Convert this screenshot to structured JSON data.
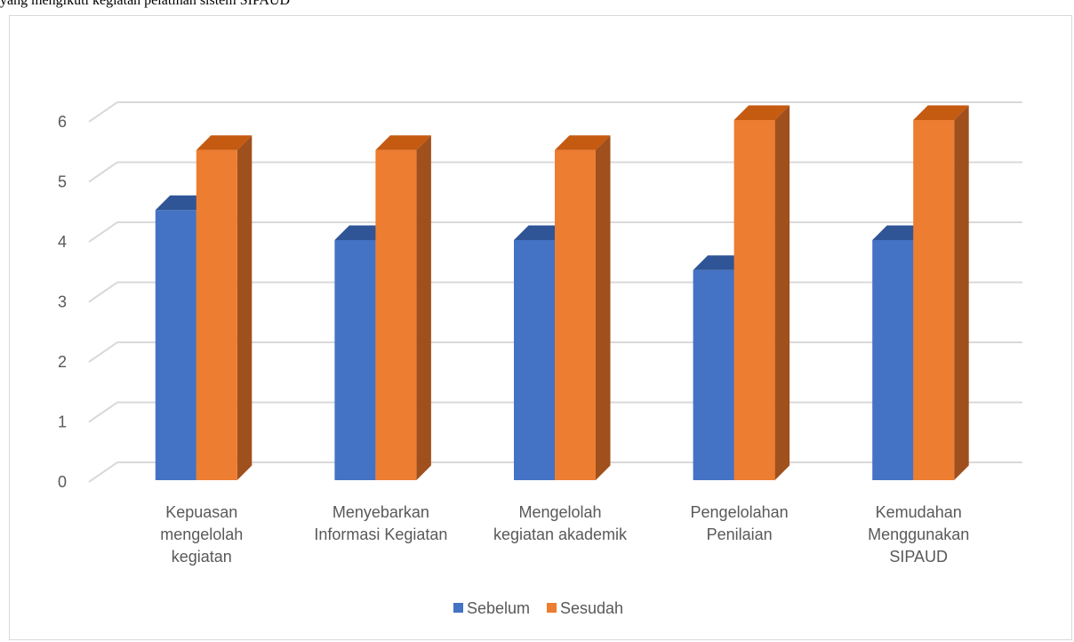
{
  "page": {
    "top_text": "yang mengikuti kegiatan pelatihan sistem SIPAUD"
  },
  "chart_data": {
    "type": "bar",
    "style": "3d-clustered-column",
    "categories": [
      [
        "Kepuasan",
        "mengelolah",
        "kegiatan"
      ],
      [
        "Menyebarkan",
        "Informasi Kegiatan"
      ],
      [
        "Mengelolah",
        "kegiatan akademik"
      ],
      [
        "Pengelolahan",
        "Penilaian"
      ],
      [
        "Kemudahan",
        "Menggunakan",
        "SIPAUD"
      ]
    ],
    "series": [
      {
        "name": "Sebelum",
        "values": [
          4.5,
          4,
          4,
          3.5,
          4
        ],
        "color": "#4472c4",
        "top_color": "#2f5597",
        "side_color": "#2f528f"
      },
      {
        "name": "Sesudah",
        "values": [
          5.5,
          5.5,
          5.5,
          6,
          6
        ],
        "color": "#ed7d31",
        "top_color": "#c55a11",
        "side_color": "#a0501c"
      }
    ],
    "ylim": [
      0,
      6
    ],
    "yticks": [
      "0",
      "1",
      "2",
      "3",
      "4",
      "5",
      "6"
    ],
    "grid": true,
    "legend_position": "bottom",
    "title": "",
    "xlabel": "",
    "ylabel": ""
  }
}
